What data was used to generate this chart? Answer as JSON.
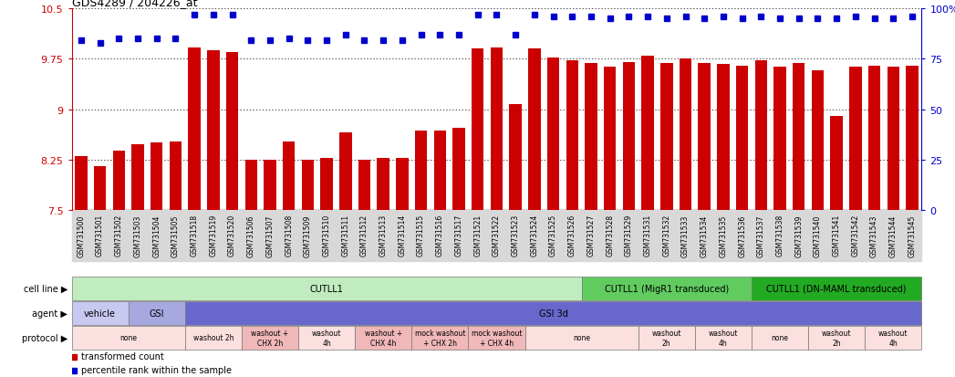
{
  "title": "GDS4289 / 204226_at",
  "samples": [
    "GSM731500",
    "GSM731501",
    "GSM731502",
    "GSM731503",
    "GSM731504",
    "GSM731505",
    "GSM731518",
    "GSM731519",
    "GSM731520",
    "GSM731506",
    "GSM731507",
    "GSM731508",
    "GSM731509",
    "GSM731510",
    "GSM731511",
    "GSM731512",
    "GSM731513",
    "GSM731514",
    "GSM731515",
    "GSM731516",
    "GSM731517",
    "GSM731521",
    "GSM731522",
    "GSM731523",
    "GSM731524",
    "GSM731525",
    "GSM731526",
    "GSM731527",
    "GSM731528",
    "GSM731529",
    "GSM731531",
    "GSM731532",
    "GSM731533",
    "GSM731534",
    "GSM731535",
    "GSM731536",
    "GSM731537",
    "GSM731538",
    "GSM731539",
    "GSM731540",
    "GSM731541",
    "GSM731542",
    "GSM731543",
    "GSM731544",
    "GSM731545"
  ],
  "bar_values": [
    8.3,
    8.15,
    8.38,
    8.48,
    8.5,
    8.52,
    9.92,
    9.88,
    9.85,
    8.25,
    8.25,
    8.52,
    8.25,
    8.28,
    8.65,
    8.25,
    8.28,
    8.28,
    8.68,
    8.68,
    8.72,
    9.9,
    9.92,
    9.07,
    9.9,
    9.77,
    9.72,
    9.68,
    9.63,
    9.7,
    9.8,
    9.68,
    9.75,
    9.68,
    9.67,
    9.65,
    9.72,
    9.63,
    9.68,
    9.58,
    8.9,
    9.63,
    9.65,
    9.63,
    9.65
  ],
  "percentile_values": [
    84,
    83,
    85,
    85,
    85,
    85,
    97,
    97,
    97,
    84,
    84,
    85,
    84,
    84,
    87,
    84,
    84,
    84,
    87,
    87,
    87,
    97,
    97,
    87,
    97,
    96,
    96,
    96,
    95,
    96,
    96,
    95,
    96,
    95,
    96,
    95,
    96,
    95,
    95,
    95,
    95,
    96,
    95,
    95,
    96
  ],
  "bar_color": "#cc0000",
  "percentile_color": "#0000cc",
  "ylim": [
    7.5,
    10.5
  ],
  "yticks": [
    7.5,
    8.25,
    9.0,
    9.75,
    10.5
  ],
  "ylabels": [
    "7.5",
    "8.25",
    "9",
    "9.75",
    "10.5"
  ],
  "right_yticks": [
    0,
    25,
    50,
    75,
    100
  ],
  "right_ylabels": [
    "0",
    "25",
    "50",
    "75",
    "100%"
  ],
  "cell_line_groups": [
    {
      "label": "CUTLL1",
      "start": 0,
      "end": 27,
      "color": "#c0ecc0"
    },
    {
      "label": "CUTLL1 (MigR1 transduced)",
      "start": 27,
      "end": 36,
      "color": "#60cc60"
    },
    {
      "label": "CUTLL1 (DN-MAML transduced)",
      "start": 36,
      "end": 45,
      "color": "#22aa22"
    }
  ],
  "agent_groups": [
    {
      "label": "vehicle",
      "start": 0,
      "end": 3,
      "color": "#c8c8f0"
    },
    {
      "label": "GSI",
      "start": 3,
      "end": 6,
      "color": "#a8a8e0"
    },
    {
      "label": "GSI 3d",
      "start": 6,
      "end": 45,
      "color": "#6868cc"
    }
  ],
  "protocol_groups": [
    {
      "label": "none",
      "start": 0,
      "end": 6,
      "color": "#fce0e0"
    },
    {
      "label": "washout 2h",
      "start": 6,
      "end": 9,
      "color": "#fce0e0"
    },
    {
      "label": "washout +\nCHX 2h",
      "start": 9,
      "end": 12,
      "color": "#f0b8b8"
    },
    {
      "label": "washout\n4h",
      "start": 12,
      "end": 15,
      "color": "#fce0e0"
    },
    {
      "label": "washout +\nCHX 4h",
      "start": 15,
      "end": 18,
      "color": "#f0b8b8"
    },
    {
      "label": "mock washout\n+ CHX 2h",
      "start": 18,
      "end": 21,
      "color": "#f0b8b8"
    },
    {
      "label": "mock washout\n+ CHX 4h",
      "start": 21,
      "end": 24,
      "color": "#f0b8b8"
    },
    {
      "label": "none",
      "start": 24,
      "end": 30,
      "color": "#fce0e0"
    },
    {
      "label": "washout\n2h",
      "start": 30,
      "end": 33,
      "color": "#fce0e0"
    },
    {
      "label": "washout\n4h",
      "start": 33,
      "end": 36,
      "color": "#fce0e0"
    },
    {
      "label": "none",
      "start": 36,
      "end": 39,
      "color": "#fce0e0"
    },
    {
      "label": "washout\n2h",
      "start": 39,
      "end": 42,
      "color": "#fce0e0"
    },
    {
      "label": "washout\n4h",
      "start": 42,
      "end": 45,
      "color": "#fce0e0"
    }
  ],
  "legend_items": [
    {
      "label": "transformed count",
      "color": "#cc0000"
    },
    {
      "label": "percentile rank within the sample",
      "color": "#0000cc"
    }
  ]
}
